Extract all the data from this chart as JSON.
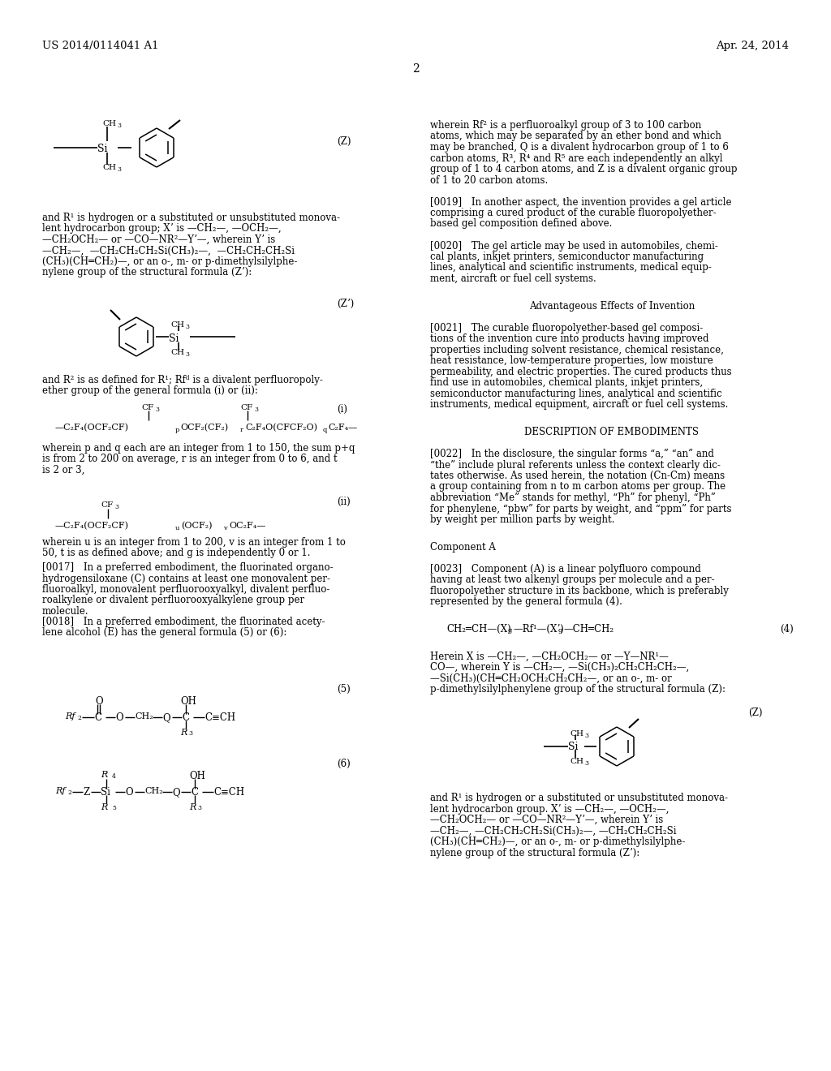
{
  "bg_color": "#ffffff",
  "header_left": "US 2014/0114041 A1",
  "header_right": "Apr. 24, 2014",
  "page_number": "2",
  "body_size": 8.5,
  "small_size": 6.5,
  "formula_size": 8.0
}
